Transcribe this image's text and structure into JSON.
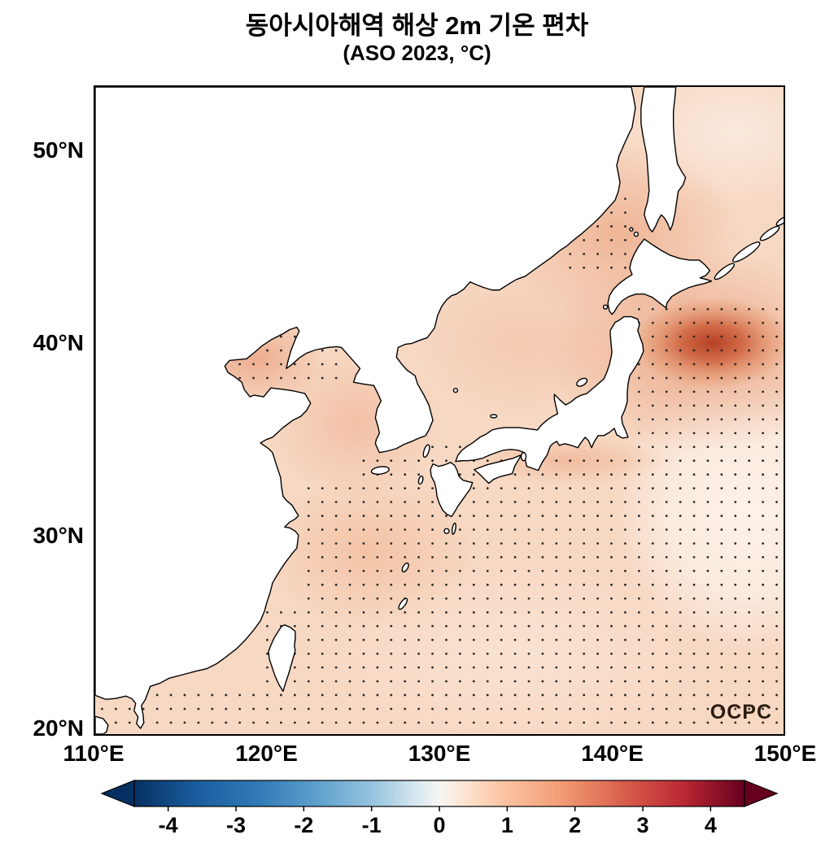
{
  "title": {
    "line1": "동아시아해역 해상 2m 기온 편차",
    "line2": "(ASO 2023, °C)"
  },
  "map": {
    "watermark": "OCPC",
    "x_axis": {
      "tick_labels": [
        "110°E",
        "120°E",
        "130°E",
        "140°E",
        "150°E"
      ],
      "tick_lons": [
        110,
        120,
        130,
        140,
        150
      ]
    },
    "y_axis": {
      "tick_labels": [
        "50°N",
        "40°N",
        "30°N",
        "20°N"
      ],
      "tick_lats": [
        50,
        40,
        30,
        20
      ]
    },
    "extent": {
      "lon_min": 110,
      "lon_max": 150,
      "lat_min": 19.6,
      "lat_max": 53.4
    },
    "colors": {
      "ocean_base": "#f7d8c3",
      "land": "#ffffff",
      "coastline": "#000000",
      "stipple": "#262626"
    }
  },
  "colorbar": {
    "tick_labels": [
      "-4",
      "-3",
      "-2",
      "-1",
      "0",
      "1",
      "2",
      "3",
      "4"
    ],
    "tick_values": [
      -4,
      -3,
      -2,
      -1,
      0,
      1,
      2,
      3,
      4
    ],
    "value_range": [
      -4.5,
      4.5
    ],
    "gradient_stops": [
      [
        "0%",
        "#053061"
      ],
      [
        "10%",
        "#1a5d9e"
      ],
      [
        "20%",
        "#2f79b5"
      ],
      [
        "30%",
        "#5ea0cd"
      ],
      [
        "40%",
        "#9dc8e0"
      ],
      [
        "46%",
        "#d6e7f1"
      ],
      [
        "50%",
        "#f7f6f3"
      ],
      [
        "54%",
        "#fde5d3"
      ],
      [
        "60%",
        "#fbc6a4"
      ],
      [
        "70%",
        "#f29c74"
      ],
      [
        "80%",
        "#d9604c"
      ],
      [
        "90%",
        "#bb2733"
      ],
      [
        "100%",
        "#67001f"
      ]
    ],
    "under_color": "#053061",
    "over_color": "#67001f"
  },
  "chart_data": {
    "type": "heatmap",
    "title": "동아시아해역 해상 2m 기온 편차 (ASO 2023, °C)",
    "season": "ASO 2023",
    "units": "°C",
    "lon_range": [
      110,
      150
    ],
    "lat_range": [
      20,
      53.4
    ],
    "colormap": "blue-white-red diverging (RdBu_r)",
    "color_limits": [
      -4.5,
      4.5
    ],
    "description": "2 m air temperature anomaly over East Asian seas; warm (positive) anomalies of about +0.3 to +3 °C everywhere, maximum east of northern Japan; stippled dots mark significant regions.",
    "max_anomaly": {
      "lon": 145.5,
      "lat": 40,
      "value": 2.9
    },
    "sample_points": [
      {
        "lon": 114,
        "lat": 21,
        "value": 0.8
      },
      {
        "lon": 120,
        "lat": 24,
        "value": 0.8
      },
      {
        "lon": 126,
        "lat": 28,
        "value": 0.9
      },
      {
        "lon": 122,
        "lat": 31,
        "value": 1.0
      },
      {
        "lon": 124,
        "lat": 36,
        "value": 0.8
      },
      {
        "lon": 120,
        "lat": 39.5,
        "value": 1.2
      },
      {
        "lon": 127,
        "lat": 34,
        "value": 0.9
      },
      {
        "lon": 131,
        "lat": 37.5,
        "value": 0.7
      },
      {
        "lon": 135,
        "lat": 40,
        "value": 0.8
      },
      {
        "lon": 139,
        "lat": 42,
        "value": 0.9
      },
      {
        "lon": 139,
        "lat": 45.5,
        "value": 1.3
      },
      {
        "lon": 146,
        "lat": 51,
        "value": 0.5
      },
      {
        "lon": 145.5,
        "lat": 40,
        "value": 2.9
      },
      {
        "lon": 143,
        "lat": 36,
        "value": 0.9
      },
      {
        "lon": 148,
        "lat": 32,
        "value": 0.4
      },
      {
        "lon": 140,
        "lat": 29,
        "value": 0.7
      },
      {
        "lon": 133,
        "lat": 24,
        "value": 0.7
      },
      {
        "lon": 147,
        "lat": 23,
        "value": 0.6
      }
    ],
    "stipple_regions": [
      {
        "lon": [
          110.3,
          150
        ],
        "lat": [
          20,
          22.3
        ]
      },
      {
        "lon": [
          119.5,
          150
        ],
        "lat": [
          22.3,
          26.3
        ]
      },
      {
        "lon": [
          121.8,
          150
        ],
        "lat": [
          26.3,
          32.5
        ]
      },
      {
        "lon": [
          125.5,
          150
        ],
        "lat": [
          32.5,
          34.5
        ]
      },
      {
        "lon": [
          141.3,
          150
        ],
        "lat": [
          34.5,
          42.3
        ]
      },
      {
        "lon": [
          137.0,
          141.5
        ],
        "lat": [
          43.8,
          48.0
        ]
      },
      {
        "lon": [
          118.3,
          124.5
        ],
        "lat": [
          38.0,
          41.3
        ]
      },
      {
        "lon": [
          128.8,
          133.0
        ],
        "lat": [
          33.5,
          35.3
        ]
      }
    ],
    "stipple_grid_step_deg": {
      "lon": 0.8,
      "lat": 0.72
    },
    "grid": false,
    "legend": "horizontal colorbar below map, ticks -4..4, arrow ends"
  }
}
